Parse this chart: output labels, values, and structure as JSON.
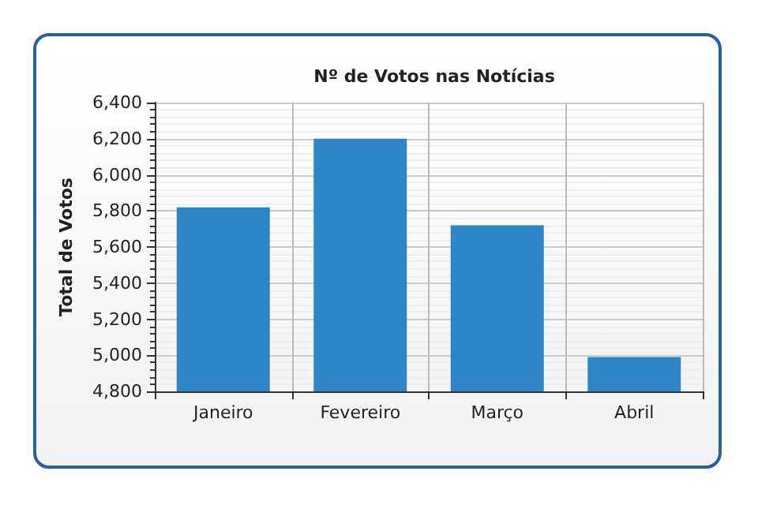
{
  "chart_data": {
    "type": "bar",
    "title": "Nº de Votos nas Notícias",
    "ylabel": "Total de Votos",
    "categories": [
      "Janeiro",
      "Fevereiro",
      "Março",
      "Abril"
    ],
    "values": [
      5820,
      6200,
      5720,
      4990
    ],
    "color": "#2f86c6",
    "ylim": [
      4800,
      6400
    ],
    "yticks": [
      {
        "value": 4800,
        "label": "4,800"
      },
      {
        "value": 5000,
        "label": "5,000"
      },
      {
        "value": 5200,
        "label": "5,200"
      },
      {
        "value": 5400,
        "label": "5,400"
      },
      {
        "value": 5600,
        "label": "5,600"
      },
      {
        "value": 5800,
        "label": "5,800"
      },
      {
        "value": 6000,
        "label": "6,000"
      },
      {
        "value": 6200,
        "label": "6,200"
      },
      {
        "value": 6400,
        "label": "6,400"
      }
    ],
    "grid": true
  }
}
